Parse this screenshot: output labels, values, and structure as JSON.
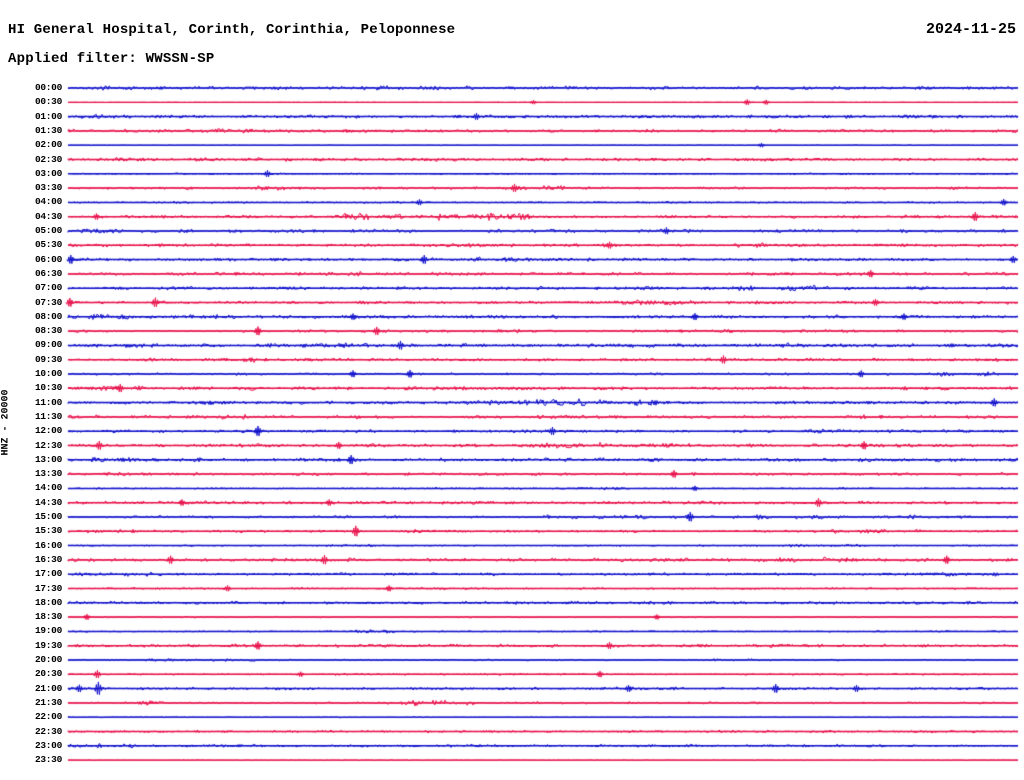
{
  "header": {
    "title": "HI General Hospital, Corinth, Corinthia, Peloponnese",
    "date": "2024-11-25",
    "subtitle": "Applied filter: WWSSN-SP"
  },
  "chart_data": {
    "type": "line",
    "subtype": "helicorder-dayplot",
    "title": "HI General Hospital, Corinth, Corinthia, Peloponnese",
    "date": "2024-11-25",
    "applied_filter": "WWSSN-SP",
    "ylabel": "HNZ - 20000",
    "channel": "HNZ",
    "gain": "20000",
    "row_interval_minutes": 30,
    "time_range": [
      "00:00",
      "23:30"
    ],
    "grid": false,
    "legend": "none",
    "colors": {
      "blue": "#1212CC",
      "red": "#E8114B"
    },
    "rows": [
      {
        "label": "00:00",
        "color": "blue",
        "amp": 1.4,
        "bursts": [
          [
            0.03,
            0.12,
            1.9
          ],
          [
            0.3,
            0.42,
            1.9
          ],
          [
            0.52,
            0.63,
            1.9
          ],
          [
            0.68,
            0.74,
            1.7
          ]
        ],
        "spikes": []
      },
      {
        "label": "00:30",
        "color": "red",
        "amp": 0.25,
        "bursts": [],
        "spikes": [
          [
            0.49,
            1.3
          ],
          [
            0.715,
            1.7
          ],
          [
            0.735,
            1.5
          ]
        ]
      },
      {
        "label": "01:00",
        "color": "blue",
        "amp": 1.5,
        "bursts": [
          [
            0.0,
            0.1,
            2.0
          ],
          [
            0.42,
            0.5,
            2.0
          ]
        ],
        "spikes": [
          [
            0.43,
            2.2
          ]
        ]
      },
      {
        "label": "01:30",
        "color": "red",
        "amp": 1.5,
        "bursts": [
          [
            0.15,
            0.2,
            2.0
          ],
          [
            0.6,
            0.65,
            1.8
          ]
        ],
        "spikes": []
      },
      {
        "label": "02:00",
        "color": "blue",
        "amp": 0.35,
        "bursts": [],
        "spikes": [
          [
            0.73,
            1.4
          ]
        ]
      },
      {
        "label": "02:30",
        "color": "red",
        "amp": 1.3,
        "bursts": [
          [
            0.05,
            0.25,
            1.6
          ],
          [
            0.3,
            0.5,
            1.5
          ]
        ],
        "spikes": []
      },
      {
        "label": "03:00",
        "color": "blue",
        "amp": 0.7,
        "bursts": [],
        "spikes": [
          [
            0.21,
            2.2
          ]
        ]
      },
      {
        "label": "03:30",
        "color": "red",
        "amp": 1.2,
        "bursts": [
          [
            0.2,
            0.26,
            2.2
          ],
          [
            0.45,
            0.55,
            2.0
          ]
        ],
        "spikes": [
          [
            0.47,
            2.6
          ]
        ]
      },
      {
        "label": "04:00",
        "color": "blue",
        "amp": 0.8,
        "bursts": [],
        "spikes": [
          [
            0.37,
            1.9
          ],
          [
            0.985,
            2.0
          ]
        ]
      },
      {
        "label": "04:30",
        "color": "red",
        "amp": 1.3,
        "bursts": [
          [
            0.29,
            0.49,
            3.2
          ]
        ],
        "spikes": [
          [
            0.03,
            2.0
          ],
          [
            0.955,
            2.8
          ]
        ]
      },
      {
        "label": "05:00",
        "color": "blue",
        "amp": 1.5,
        "bursts": [
          [
            0.0,
            0.08,
            2.0
          ]
        ],
        "spikes": [
          [
            0.63,
            2.2
          ]
        ]
      },
      {
        "label": "05:30",
        "color": "red",
        "amp": 1.5,
        "bursts": [
          [
            0.36,
            0.44,
            2.4
          ],
          [
            0.7,
            0.76,
            2.0
          ]
        ],
        "spikes": [
          [
            0.57,
            2.2
          ]
        ]
      },
      {
        "label": "06:00",
        "color": "blue",
        "amp": 1.4,
        "bursts": [
          [
            0.42,
            0.55,
            2.0
          ]
        ],
        "spikes": [
          [
            0.003,
            2.8
          ],
          [
            0.375,
            2.8
          ],
          [
            0.995,
            2.2
          ]
        ]
      },
      {
        "label": "06:30",
        "color": "red",
        "amp": 1.5,
        "bursts": [
          [
            0.27,
            0.33,
            2.3
          ],
          [
            0.54,
            0.62,
            2.1
          ]
        ],
        "spikes": [
          [
            0.845,
            2.3
          ]
        ]
      },
      {
        "label": "07:00",
        "color": "blue",
        "amp": 1.4,
        "bursts": [
          [
            0.7,
            0.8,
            2.6
          ],
          [
            0.85,
            0.9,
            2.0
          ]
        ],
        "spikes": []
      },
      {
        "label": "07:30",
        "color": "red",
        "amp": 1.4,
        "bursts": [
          [
            0.58,
            0.66,
            2.3
          ]
        ],
        "spikes": [
          [
            0.002,
            2.8
          ],
          [
            0.092,
            3.0
          ],
          [
            0.85,
            2.2
          ]
        ]
      },
      {
        "label": "08:00",
        "color": "blue",
        "amp": 1.5,
        "bursts": [
          [
            0.0,
            0.07,
            2.2
          ],
          [
            0.12,
            0.16,
            2.0
          ]
        ],
        "spikes": [
          [
            0.3,
            2.0
          ],
          [
            0.66,
            2.2
          ],
          [
            0.88,
            2.0
          ]
        ]
      },
      {
        "label": "08:30",
        "color": "red",
        "amp": 1.2,
        "bursts": [
          [
            0.45,
            0.5,
            1.8
          ],
          [
            0.63,
            0.7,
            1.8
          ]
        ],
        "spikes": [
          [
            0.2,
            2.8
          ],
          [
            0.325,
            2.6
          ]
        ]
      },
      {
        "label": "09:00",
        "color": "blue",
        "amp": 1.8,
        "bursts": [
          [
            0.28,
            0.35,
            2.2
          ],
          [
            0.75,
            0.8,
            2.2
          ]
        ],
        "spikes": [
          [
            0.35,
            2.8
          ]
        ]
      },
      {
        "label": "09:30",
        "color": "red",
        "amp": 1.4,
        "bursts": [
          [
            0.16,
            0.2,
            2.4
          ]
        ],
        "spikes": [
          [
            0.69,
            2.6
          ]
        ]
      },
      {
        "label": "10:00",
        "color": "blue",
        "amp": 1.1,
        "bursts": [
          [
            0.9,
            1.0,
            2.0
          ]
        ],
        "spikes": [
          [
            0.3,
            2.2
          ],
          [
            0.36,
            2.4
          ],
          [
            0.835,
            2.2
          ]
        ]
      },
      {
        "label": "10:30",
        "color": "red",
        "amp": 1.6,
        "bursts": [
          [
            0.02,
            0.08,
            2.2
          ],
          [
            0.4,
            0.45,
            2.3
          ]
        ],
        "spikes": [
          [
            0.055,
            2.6
          ]
        ]
      },
      {
        "label": "11:00",
        "color": "blue",
        "amp": 1.5,
        "bursts": [
          [
            0.14,
            0.2,
            2.0
          ],
          [
            0.407,
            0.62,
            3.0
          ]
        ],
        "spikes": [
          [
            0.975,
            2.6
          ]
        ]
      },
      {
        "label": "11:30",
        "color": "red",
        "amp": 1.5,
        "bursts": [
          [
            0.16,
            0.2,
            2.6
          ],
          [
            0.83,
            0.87,
            2.0
          ]
        ],
        "spikes": []
      },
      {
        "label": "12:00",
        "color": "blue",
        "amp": 1.4,
        "bursts": [
          [
            0.78,
            0.88,
            2.0
          ]
        ],
        "spikes": [
          [
            0.2,
            3.2
          ],
          [
            0.51,
            2.6
          ]
        ]
      },
      {
        "label": "12:30",
        "color": "red",
        "amp": 1.6,
        "bursts": [
          [
            0.5,
            0.56,
            2.5
          ],
          [
            0.6,
            0.67,
            2.3
          ]
        ],
        "spikes": [
          [
            0.033,
            2.8
          ],
          [
            0.285,
            2.2
          ],
          [
            0.838,
            2.6
          ]
        ]
      },
      {
        "label": "13:00",
        "color": "blue",
        "amp": 1.7,
        "bursts": [
          [
            0.0,
            0.14,
            2.1
          ]
        ],
        "spikes": [
          [
            0.298,
            2.9
          ]
        ]
      },
      {
        "label": "13:30",
        "color": "red",
        "amp": 1.4,
        "bursts": [],
        "spikes": [
          [
            0.638,
            2.4
          ]
        ]
      },
      {
        "label": "14:00",
        "color": "blue",
        "amp": 0.7,
        "bursts": [
          [
            0.56,
            0.6,
            1.4
          ]
        ],
        "spikes": [
          [
            0.66,
            1.6
          ]
        ]
      },
      {
        "label": "14:30",
        "color": "red",
        "amp": 1.5,
        "bursts": [],
        "spikes": [
          [
            0.12,
            2.0
          ],
          [
            0.275,
            2.0
          ],
          [
            0.79,
            2.8
          ]
        ]
      },
      {
        "label": "15:00",
        "color": "blue",
        "amp": 1.3,
        "bursts": [
          [
            0.5,
            0.62,
            1.8
          ],
          [
            0.72,
            0.9,
            1.9
          ]
        ],
        "spikes": [
          [
            0.655,
            3.0
          ]
        ]
      },
      {
        "label": "15:30",
        "color": "red",
        "amp": 1.1,
        "bursts": [
          [
            0.02,
            0.07,
            1.9
          ],
          [
            0.36,
            0.42,
            1.7
          ],
          [
            0.8,
            0.9,
            1.7
          ]
        ],
        "spikes": [
          [
            0.303,
            3.4
          ]
        ]
      },
      {
        "label": "16:00",
        "color": "blue",
        "amp": 0.6,
        "bursts": [
          [
            0.27,
            0.33,
            1.5
          ],
          [
            0.76,
            0.84,
            1.4
          ]
        ],
        "spikes": []
      },
      {
        "label": "16:30",
        "color": "red",
        "amp": 1.6,
        "bursts": [
          [
            0.73,
            0.82,
            2.2
          ]
        ],
        "spikes": [
          [
            0.108,
            2.6
          ],
          [
            0.27,
            3.0
          ],
          [
            0.925,
            2.6
          ]
        ]
      },
      {
        "label": "17:00",
        "color": "blue",
        "amp": 1.2,
        "bursts": [
          [
            0.0,
            0.1,
            1.9
          ],
          [
            0.86,
            0.98,
            1.9
          ]
        ],
        "spikes": []
      },
      {
        "label": "17:30",
        "color": "red",
        "amp": 0.8,
        "bursts": [],
        "spikes": [
          [
            0.168,
            1.9
          ],
          [
            0.338,
            1.9
          ]
        ]
      },
      {
        "label": "18:00",
        "color": "blue",
        "amp": 1.3,
        "bursts": [
          [
            0.45,
            0.55,
            1.6
          ]
        ],
        "spikes": []
      },
      {
        "label": "18:30",
        "color": "red",
        "amp": 0.7,
        "bursts": [],
        "spikes": [
          [
            0.02,
            1.8
          ],
          [
            0.62,
            1.6
          ]
        ]
      },
      {
        "label": "19:00",
        "color": "blue",
        "amp": 0.6,
        "bursts": [
          [
            0.295,
            0.345,
            1.7
          ]
        ],
        "spikes": []
      },
      {
        "label": "19:30",
        "color": "red",
        "amp": 1.4,
        "bursts": [],
        "spikes": [
          [
            0.2,
            2.6
          ],
          [
            0.57,
            2.2
          ]
        ]
      },
      {
        "label": "20:00",
        "color": "blue",
        "amp": 0.8,
        "bursts": [
          [
            0.08,
            0.2,
            1.5
          ],
          [
            0.68,
            0.73,
            1.4
          ]
        ],
        "spikes": []
      },
      {
        "label": "20:30",
        "color": "red",
        "amp": 0.8,
        "bursts": [],
        "spikes": [
          [
            0.031,
            2.6
          ],
          [
            0.245,
            1.6
          ],
          [
            0.56,
            2.0
          ]
        ]
      },
      {
        "label": "21:00",
        "color": "blue",
        "amp": 1.1,
        "bursts": [
          [
            0.57,
            0.65,
            1.7
          ]
        ],
        "spikes": [
          [
            0.012,
            2.4
          ],
          [
            0.032,
            4.2
          ],
          [
            0.59,
            2.2
          ],
          [
            0.745,
            2.8
          ],
          [
            0.83,
            2.2
          ]
        ]
      },
      {
        "label": "21:30",
        "color": "red",
        "amp": 1.0,
        "bursts": [
          [
            0.07,
            0.1,
            2.0
          ],
          [
            0.35,
            0.43,
            2.4
          ]
        ],
        "spikes": []
      },
      {
        "label": "22:00",
        "color": "blue",
        "amp": 0.45,
        "bursts": [],
        "spikes": []
      },
      {
        "label": "22:30",
        "color": "red",
        "amp": 1.0,
        "bursts": [
          [
            0.65,
            0.7,
            1.5
          ]
        ],
        "spikes": []
      },
      {
        "label": "23:00",
        "color": "blue",
        "amp": 1.1,
        "bursts": [
          [
            0.0,
            0.07,
            1.7
          ],
          [
            0.4,
            0.45,
            1.6
          ]
        ],
        "spikes": []
      },
      {
        "label": "23:30",
        "color": "red",
        "amp": 0.3,
        "bursts": [],
        "spikes": []
      }
    ]
  }
}
